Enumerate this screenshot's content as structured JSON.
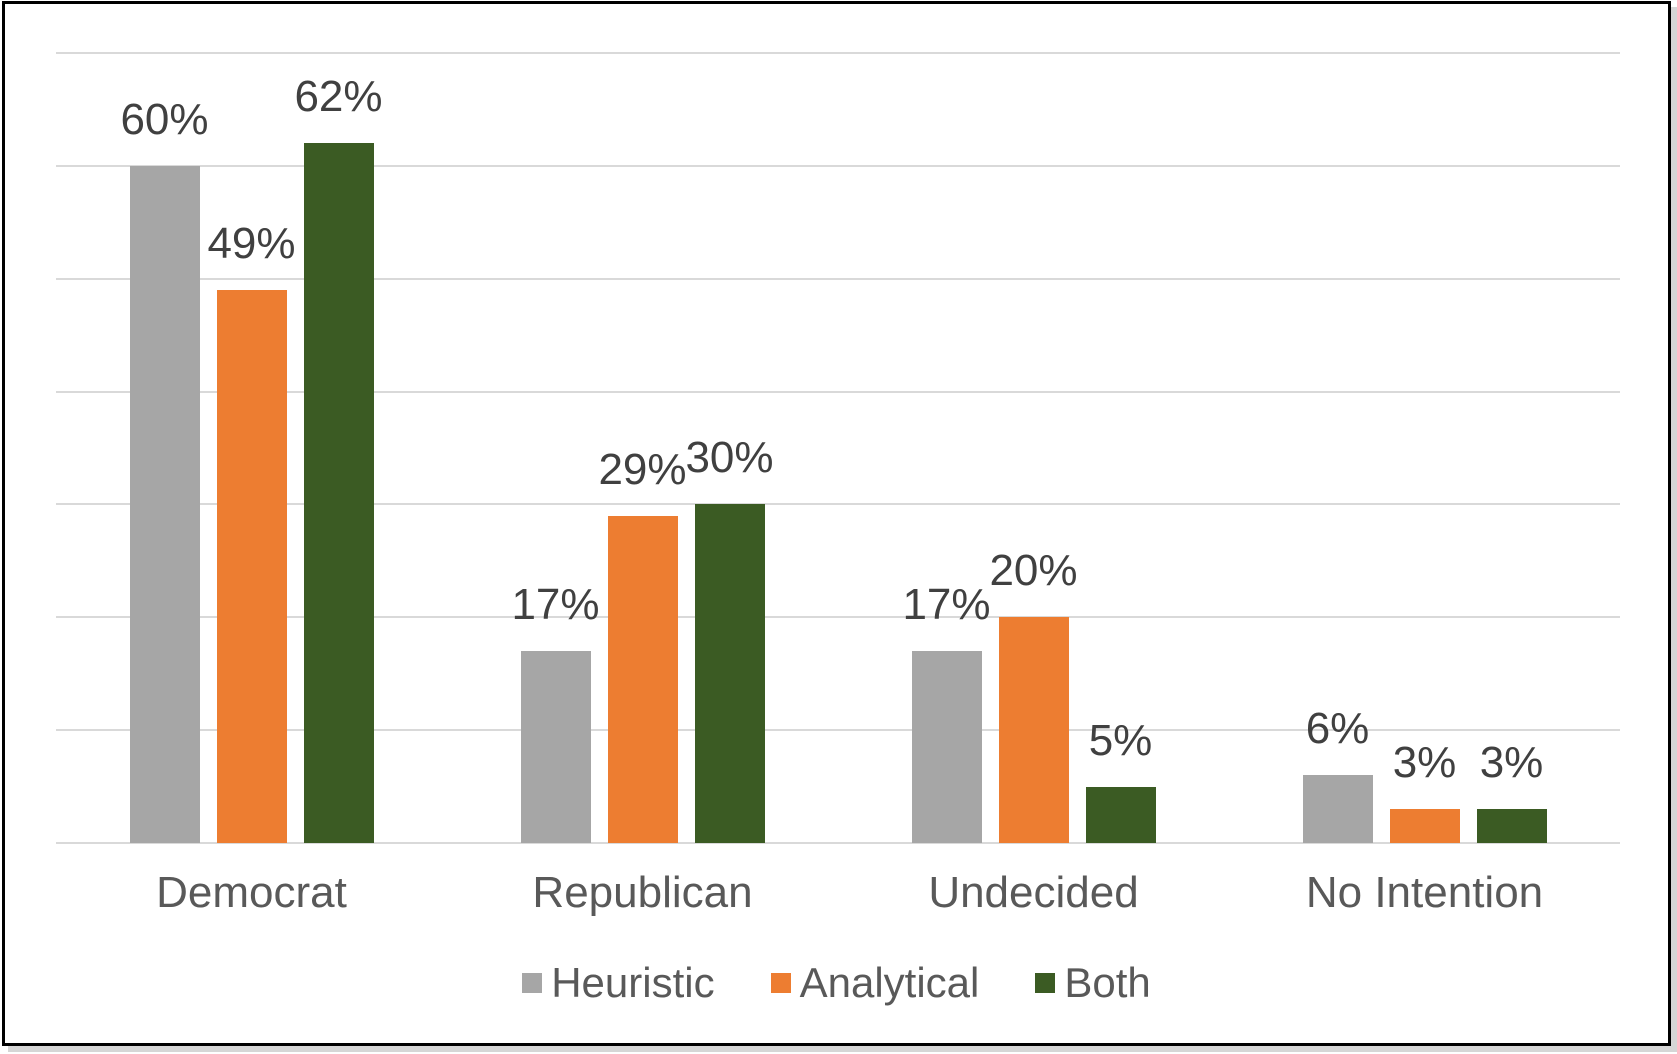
{
  "chart_data": {
    "type": "bar",
    "title": "",
    "xlabel": "",
    "ylabel": "",
    "categories": [
      "Democrat",
      "Republican",
      "Undecided",
      "No Intention"
    ],
    "series": [
      {
        "name": "Heuristic",
        "color": "#A6A6A6",
        "values": [
          60,
          17,
          17,
          6
        ]
      },
      {
        "name": "Analytical",
        "color": "#ED7D31",
        "values": [
          49,
          29,
          20,
          3
        ]
      },
      {
        "name": "Both",
        "color": "#3B5B23",
        "values": [
          62,
          30,
          5,
          3
        ]
      }
    ],
    "data_labels": [
      "60%",
      "49%",
      "62%",
      "17%",
      "29%",
      "30%",
      "17%",
      "20%",
      "5%",
      "6%",
      "3%",
      "3%"
    ],
    "value_suffix": "%",
    "ylim": [
      0,
      70
    ],
    "gridline_step": 10,
    "grid": true,
    "ytick_labels_visible": false,
    "legend_position": "bottom",
    "legend_labels": [
      "Heuristic",
      "Analytical",
      "Both"
    ]
  },
  "colors": {
    "gridline": "#d9d9d9",
    "data_label_text": "#404040",
    "axis_text": "#595959",
    "frame_border": "#000000",
    "background": "#ffffff"
  }
}
